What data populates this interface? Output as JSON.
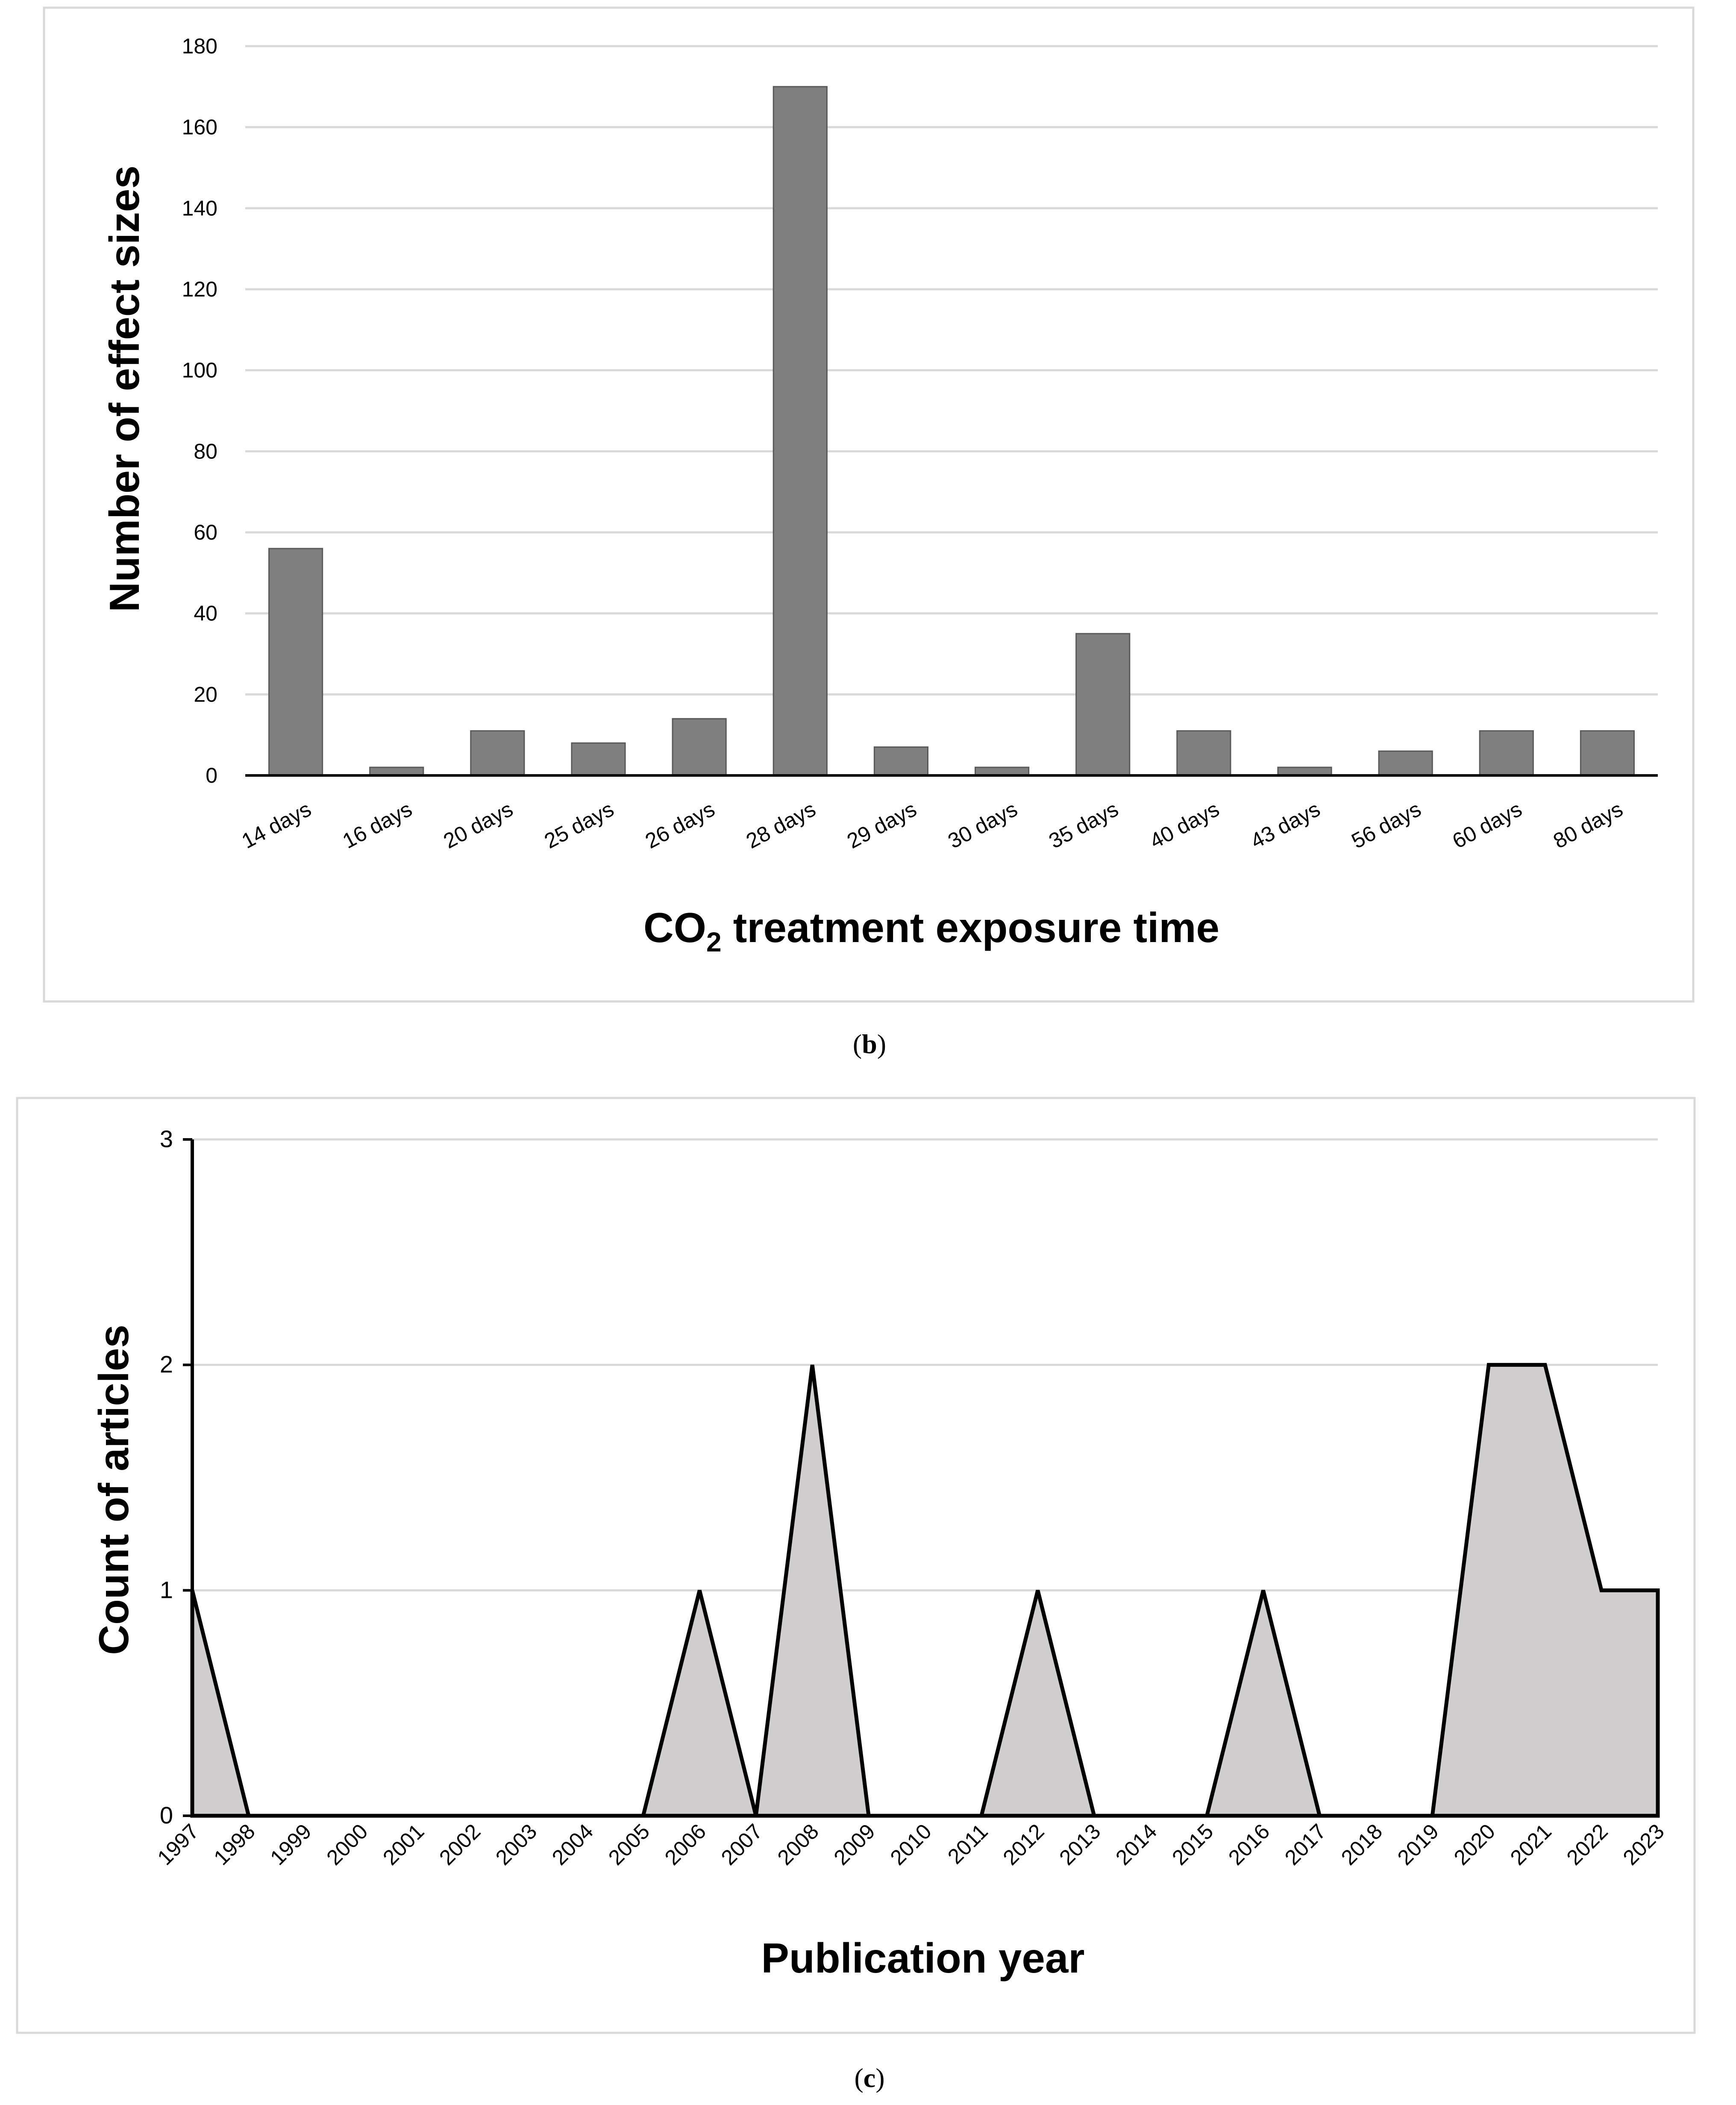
{
  "chart_data": [
    {
      "type": "bar",
      "panel_label": "b",
      "categories": [
        "14 days",
        "16 days",
        "20 days",
        "25 days",
        "26 days",
        "28 days",
        "29 days",
        "30 days",
        "35 days",
        "40 days",
        "43 days",
        "56 days",
        "60 days",
        "80 days"
      ],
      "values": [
        56,
        2,
        11,
        8,
        14,
        170,
        7,
        2,
        35,
        11,
        2,
        6,
        11,
        11
      ],
      "yticks": [
        "0",
        "20",
        "40",
        "60",
        "80",
        "100",
        "120",
        "140",
        "160",
        "180"
      ],
      "ylim": [
        0,
        180
      ],
      "ylabel": "Number of effect sizes",
      "xlabel_prefix": "CO",
      "xlabel_subscript": "2",
      "xlabel_suffix": " treatment exposure time",
      "grid": true,
      "bar_color": "#7f7f7f"
    },
    {
      "type": "area",
      "panel_label": "c",
      "x": [
        "1997",
        "1998",
        "1999",
        "2000",
        "2001",
        "2002",
        "2003",
        "2004",
        "2005",
        "2006",
        "2007",
        "2008",
        "2009",
        "2010",
        "2011",
        "2012",
        "2013",
        "2014",
        "2015",
        "2016",
        "2017",
        "2018",
        "2019",
        "2020",
        "2021",
        "2022",
        "2023"
      ],
      "values": [
        1,
        0,
        0,
        0,
        0,
        0,
        0,
        0,
        0,
        1,
        0,
        2,
        0,
        0,
        0,
        1,
        0,
        0,
        0,
        1,
        0,
        0,
        0,
        2,
        2,
        1,
        1
      ],
      "yticks": [
        "0",
        "1",
        "2",
        "3"
      ],
      "ylim": [
        0,
        3
      ],
      "ylabel": "Count of articles",
      "xlabel": "Publication year",
      "grid": true,
      "fill_color": "#d0cece",
      "line_color": "#000000"
    }
  ]
}
